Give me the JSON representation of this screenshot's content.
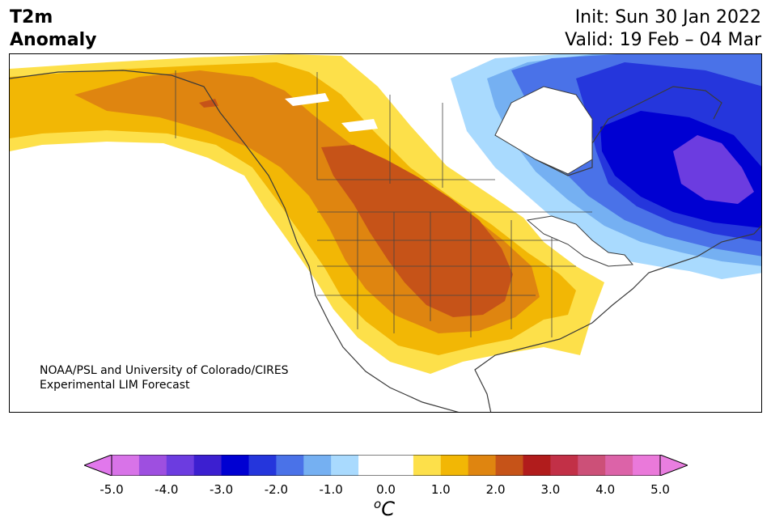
{
  "header": {
    "title_line1": "T2m",
    "title_line2": "Anomaly",
    "init": "Init: Sun 30 Jan 2022",
    "valid": "Valid: 19 Feb – 04 Mar"
  },
  "credit": {
    "line1": "NOAA/PSL and University of Colorado/CIRES",
    "line2": "Experimental LIM Forecast"
  },
  "colorbar": {
    "colors": [
      "#d873e8",
      "#9e4fe0",
      "#6c3ce0",
      "#3c1fd0",
      "#0000d2",
      "#2536dc",
      "#4a72e8",
      "#75b0f2",
      "#a9dafe",
      "#ffffff",
      "#ffffff",
      "#fde04a",
      "#f2b705",
      "#df8510",
      "#c65318",
      "#b11c1c",
      "#c23047",
      "#cc5078",
      "#dc63a8",
      "#ea79da"
    ],
    "low_extend": "#e178ec",
    "high_extend": "#e97ee0",
    "tick_labels": [
      "-5.0",
      "-4.0",
      "-3.0",
      "-2.0",
      "-1.0",
      "0.0",
      "1.0",
      "2.0",
      "3.0",
      "4.0",
      "5.0"
    ],
    "unit_base": "C",
    "unit_sup": "o"
  }
}
